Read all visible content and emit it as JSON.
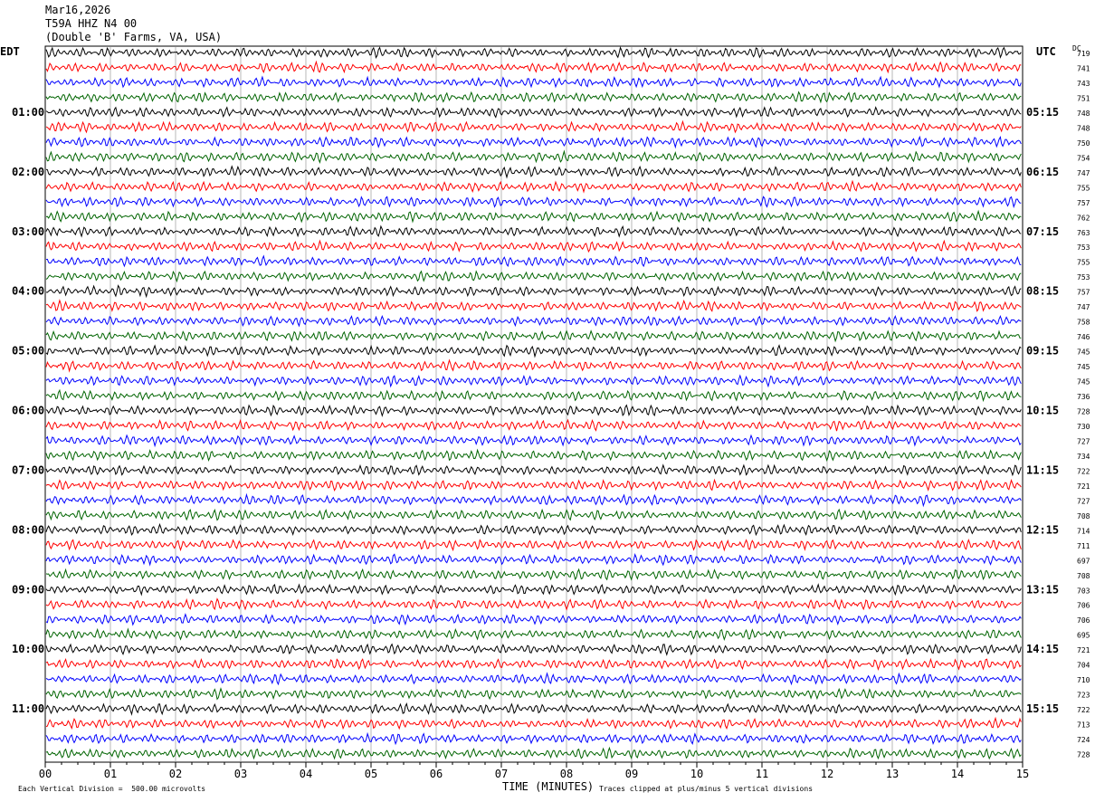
{
  "header": {
    "date": "Mar16,2026",
    "station": "T59A HHZ N4 00",
    "location": "(Double 'B' Farms, VA, USA)"
  },
  "axis": {
    "left_zone": "EDT",
    "right_zone": "UTC",
    "dc_label": "DC",
    "xlabel": "TIME (MINUTES)",
    "scale_note": "Each Vertical Division =  500.00 microvolts",
    "clip_note": "Traces clipped at plus/minus 5 vertical divisions"
  },
  "chart_data": {
    "type": "line",
    "title": "",
    "x_ticks": [
      "00",
      "01",
      "02",
      "03",
      "04",
      "05",
      "06",
      "07",
      "08",
      "09",
      "10",
      "11",
      "12",
      "13",
      "14",
      "15"
    ],
    "xlim": [
      0,
      15
    ],
    "trace_colors": [
      "#000000",
      "#ff0000",
      "#0000ff",
      "#006400"
    ],
    "left_hour_labels": [
      "01:00",
      "02:00",
      "03:00",
      "04:00",
      "05:00",
      "06:00",
      "07:00",
      "08:00",
      "09:00",
      "10:00",
      "11:00"
    ],
    "right_hour_labels": [
      "05:15",
      "06:15",
      "07:15",
      "08:15",
      "09:15",
      "10:15",
      "11:15",
      "12:15",
      "13:15",
      "14:15",
      "15:15"
    ],
    "dc_offsets": [
      719,
      741,
      743,
      751,
      748,
      748,
      750,
      754,
      747,
      755,
      757,
      762,
      763,
      753,
      755,
      753,
      757,
      747,
      758,
      746,
      745,
      745,
      745,
      736,
      728,
      730,
      727,
      734,
      722,
      721,
      727,
      708,
      714,
      711,
      697,
      708,
      703,
      706,
      706,
      695,
      721,
      704,
      710,
      723,
      722,
      713,
      724,
      728
    ],
    "trace_count": 48,
    "minutes_per_trace": 15
  }
}
